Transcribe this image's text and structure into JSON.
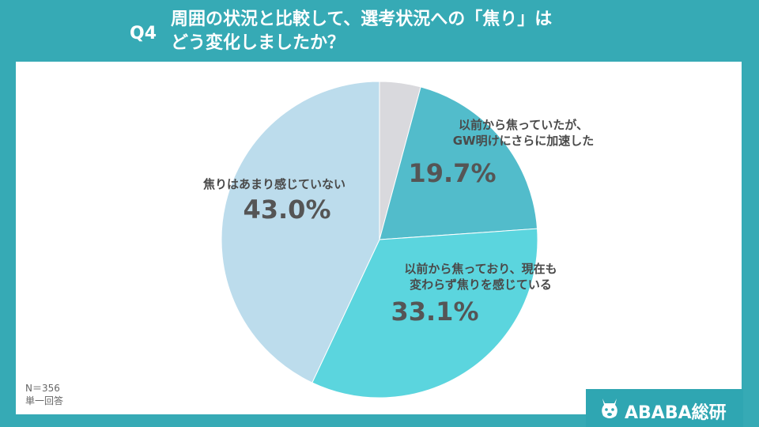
{
  "header": {
    "q_label": "Q4",
    "title_line1": "周囲の状況と比較して、選考状況への「焦り」は",
    "title_line2": "どう変化しましたか？"
  },
  "chart_data": {
    "type": "pie",
    "start_angle_deg": 0,
    "direction": "clockwise",
    "slices": [
      {
        "label": "",
        "value": 4.2,
        "color": "#d9d9dd"
      },
      {
        "label_lines": [
          "以前から焦っていたが、",
          "GW明けにさらに加速した"
        ],
        "value": 19.7,
        "display": "19.7%",
        "color": "#52bccb"
      },
      {
        "label_lines": [
          "以前から焦っており、現在も",
          "変わらず焦りを感じている"
        ],
        "value": 33.1,
        "display": "33.1%",
        "color": "#5bd5de"
      },
      {
        "label_lines": [
          "焦りはあまり感じていない"
        ],
        "value": 43.0,
        "display": "43.0%",
        "color": "#bcdcec"
      }
    ]
  },
  "notes": {
    "n": "N＝356",
    "type": "単一回答"
  },
  "logo": {
    "text": "ABABA総研",
    "icon": "alpaca-icon"
  }
}
